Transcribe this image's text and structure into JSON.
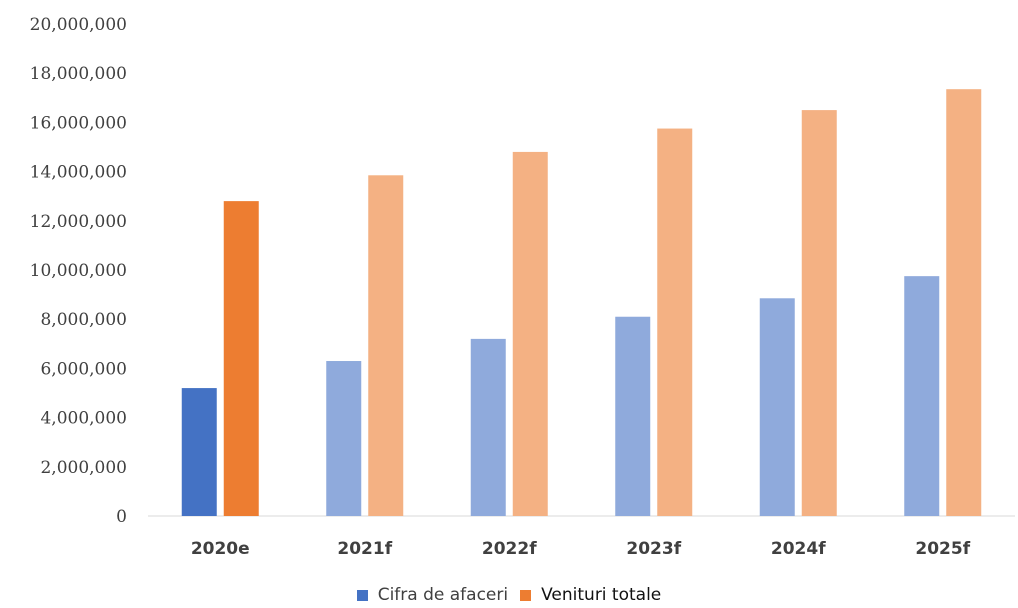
{
  "chart_data": {
    "type": "bar",
    "categories": [
      "2020e",
      "2021f",
      "2022f",
      "2023f",
      "2024f",
      "2025f"
    ],
    "series": [
      {
        "name": "Cifra de afaceri",
        "values": [
          5200000,
          6300000,
          7200000,
          8100000,
          8850000,
          9750000
        ],
        "colors": [
          "#4472C4",
          "#8FAADC",
          "#8FAADC",
          "#8FAADC",
          "#8FAADC",
          "#8FAADC"
        ]
      },
      {
        "name": "Venituri totale",
        "values": [
          12800000,
          13850000,
          14800000,
          15750000,
          16500000,
          17350000
        ],
        "colors": [
          "#ED7D31",
          "#F4B183",
          "#F4B183",
          "#F4B183",
          "#F4B183",
          "#F4B183"
        ]
      }
    ],
    "ylim": [
      0,
      20000000
    ],
    "yticks": [
      "0",
      "2,000,000",
      "4,000,000",
      "6,000,000",
      "8,000,000",
      "10,000,000",
      "12,000,000",
      "14,000,000",
      "16,000,000",
      "18,000,000",
      "20,000,000"
    ],
    "ytick_values": [
      0,
      2000000,
      4000000,
      6000000,
      8000000,
      10000000,
      12000000,
      14000000,
      16000000,
      18000000,
      20000000
    ],
    "grid": false,
    "legend_position": "bottom",
    "title": "",
    "xlabel": "",
    "ylabel": ""
  },
  "legend": [
    {
      "label": "Cifra de afaceri",
      "color": "#4472C4"
    },
    {
      "label": "Venituri totale",
      "color": "#ED7D31"
    }
  ]
}
